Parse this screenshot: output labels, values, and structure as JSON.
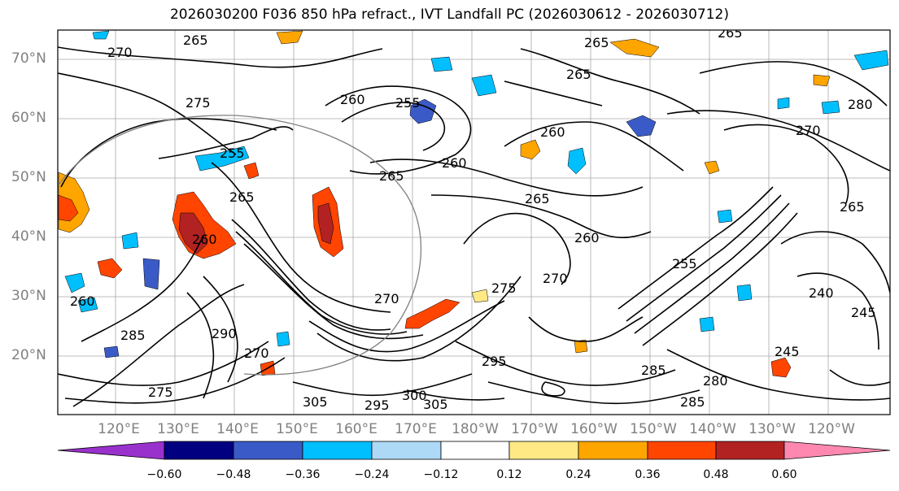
{
  "title": "2026030200 F036 850 hPa refract., IVT Landfall PC (2026030612 - 2026030712)",
  "lat_labels": [
    "70°N",
    "60°N",
    "50°N",
    "40°N",
    "30°N",
    "20°N"
  ],
  "lon_labels": [
    "120°E",
    "130°E",
    "140°E",
    "150°E",
    "160°E",
    "170°E",
    "180°W",
    "170°W",
    "160°W",
    "150°W",
    "140°W",
    "130°W",
    "120°W"
  ],
  "colorbar": {
    "colors": [
      "#9932cc",
      "#000080",
      "#3a5bc7",
      "#00bfff",
      "#add8f6",
      "#ffffff",
      "#ffe985",
      "#ffa500",
      "#ff4500",
      "#b22222",
      "#ff88b0"
    ],
    "tick_labels": [
      "−0.60",
      "−0.48",
      "−0.36",
      "−0.24",
      "−0.12",
      "0.12",
      "0.24",
      "0.36",
      "0.48",
      "0.60"
    ]
  },
  "contour_labels": [
    "265",
    "265",
    "265",
    "270",
    "275",
    "260",
    "255",
    "265",
    "260",
    "280",
    "270",
    "255",
    "265",
    "260",
    "265",
    "260",
    "270",
    "270",
    "275",
    "265",
    "255",
    "240",
    "245",
    "285",
    "280",
    "285",
    "295",
    "300",
    "305",
    "295",
    "305",
    "290",
    "285",
    "275",
    "260",
    "245",
    "260",
    "265",
    "270"
  ]
}
